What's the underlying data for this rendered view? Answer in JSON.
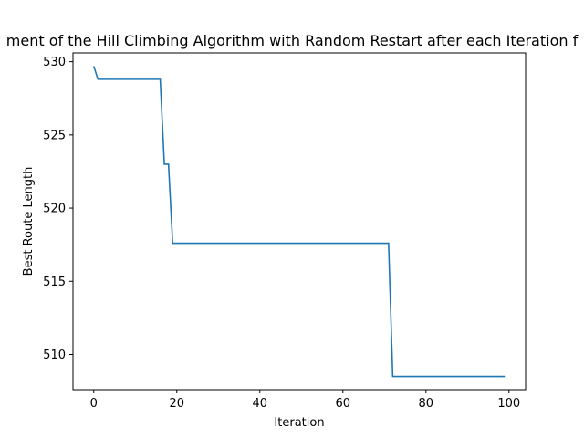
{
  "chart_data": {
    "type": "line",
    "title": "ment of the Hill Climbing Algorithm with Random Restart after each Iteration f",
    "xlabel": "Iteration",
    "ylabel": "Best Route Length",
    "xlim": [
      -5,
      104
    ],
    "ylim": [
      507.6,
      530.6
    ],
    "xticks": [
      0,
      20,
      40,
      60,
      80,
      100
    ],
    "yticks": [
      510,
      515,
      520,
      525,
      530
    ],
    "grid": false,
    "series": [
      {
        "color": "#1f77b4",
        "points": [
          [
            0,
            529.7
          ],
          [
            1,
            528.8
          ],
          [
            16,
            528.8
          ],
          [
            17,
            523.0
          ],
          [
            18,
            523.0
          ],
          [
            19,
            517.6
          ],
          [
            71,
            517.6
          ],
          [
            72,
            508.5
          ],
          [
            99,
            508.5
          ]
        ]
      }
    ]
  }
}
